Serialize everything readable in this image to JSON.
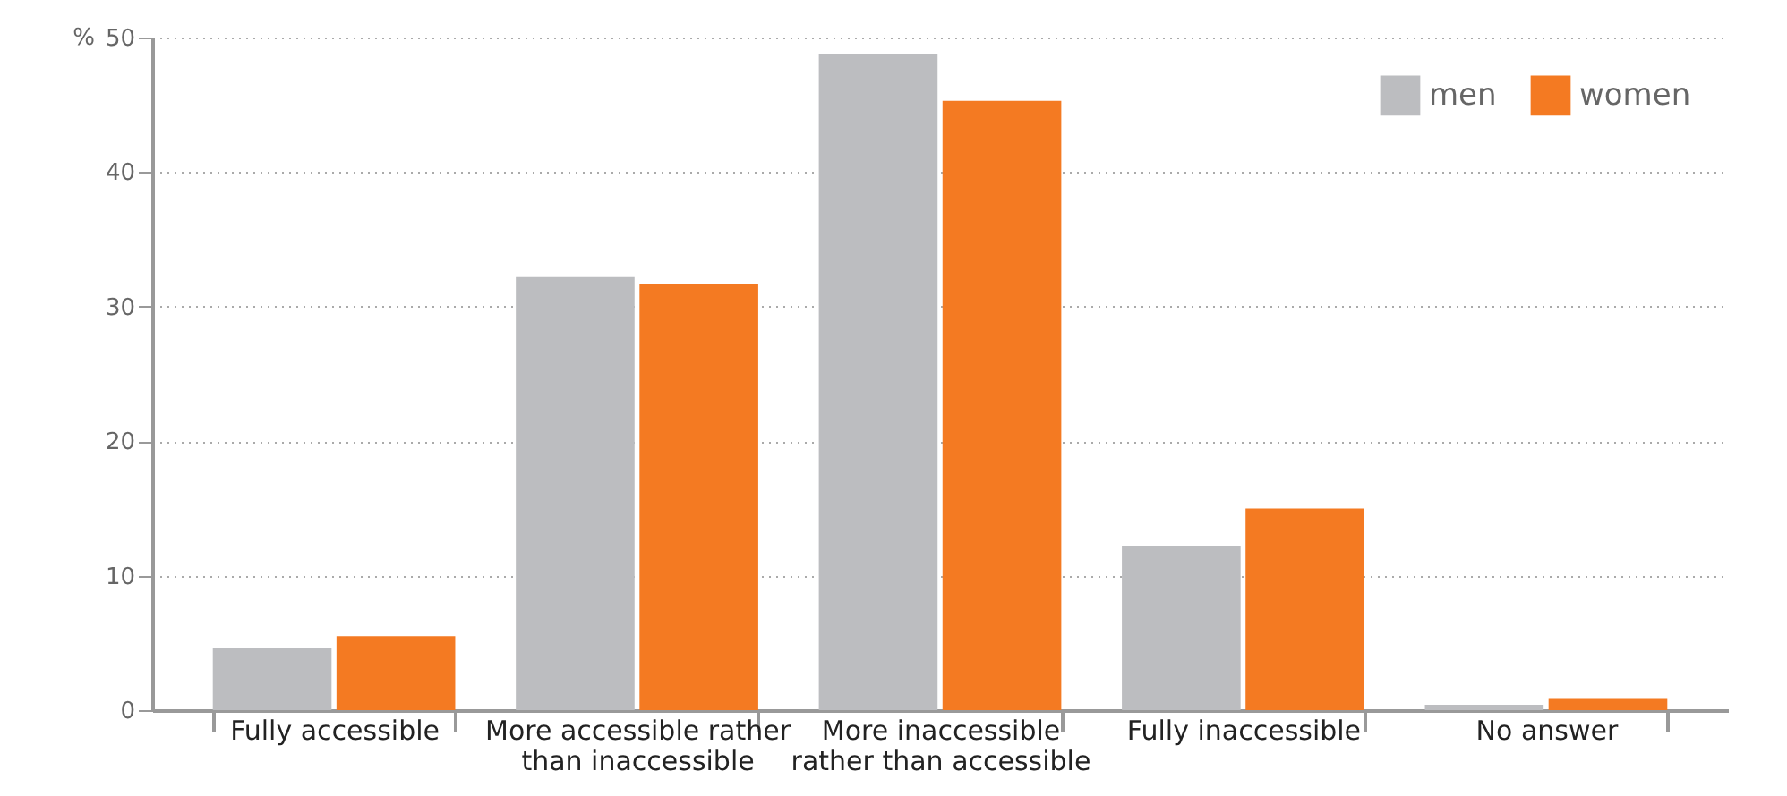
{
  "chart_data": {
    "type": "bar",
    "ylabel": "%",
    "categories": [
      "Fully accessible",
      "More accessible rather than inaccessible",
      "More inaccessible rather than accessible",
      "Fully inaccessible",
      "No answer"
    ],
    "series": [
      {
        "name": "men",
        "color": "#bcbdc0",
        "values": [
          4.6,
          32.2,
          48.8,
          12.2,
          0.4
        ]
      },
      {
        "name": "women",
        "color": "#f47a22",
        "values": [
          5.5,
          31.7,
          45.3,
          15.0,
          0.9
        ]
      }
    ],
    "ylim": [
      0,
      50
    ],
    "yticks": [
      0,
      10,
      20,
      30,
      40,
      50
    ],
    "grid": "y",
    "legend": "top right"
  }
}
